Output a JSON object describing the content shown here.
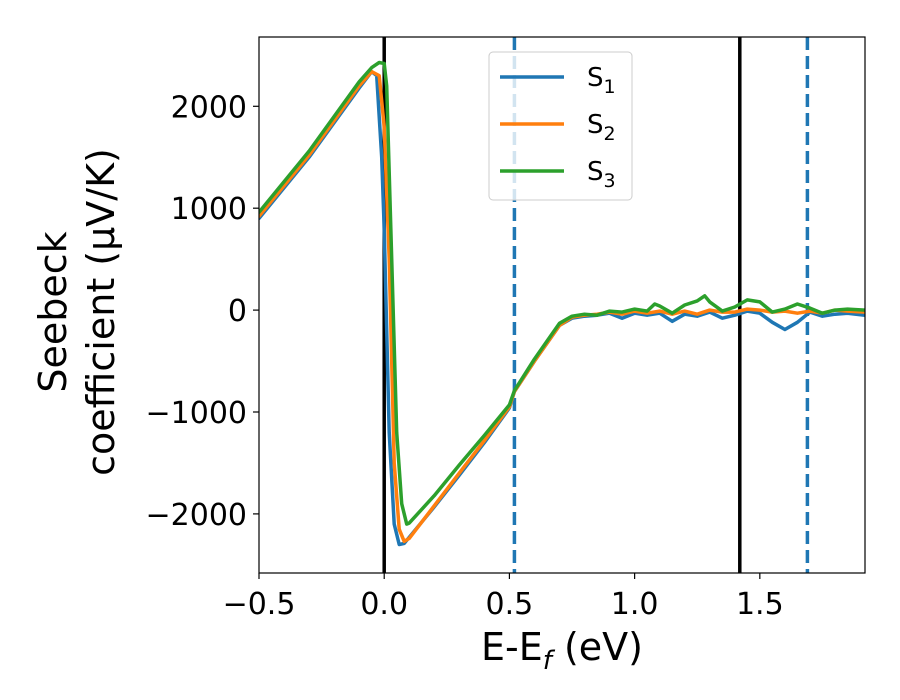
{
  "chart_data": {
    "type": "line",
    "title": "",
    "xlabel": "E-E",
    "xlabel_sub": "f",
    "xlabel_unit": " (eV)",
    "ylabel_line1": "Seebeck",
    "ylabel_line2": "coefficient  (μV/K)",
    "xlim": [
      -0.5,
      1.92
    ],
    "ylim": [
      -2580,
      2680
    ],
    "xticks": [
      -0.5,
      0.0,
      0.5,
      1.0,
      1.5
    ],
    "xtick_labels": [
      "−0.5",
      "0.0",
      "0.5",
      "1.0",
      "1.5"
    ],
    "yticks": [
      -2000,
      -1000,
      0,
      1000,
      2000
    ],
    "ytick_labels": [
      "−2000",
      "−1000",
      "0",
      "1000",
      "2000"
    ],
    "grid": false,
    "legend_position": "top-center",
    "vertical_lines": [
      {
        "x": 0.0,
        "style": "solid",
        "color": "#000000"
      },
      {
        "x": 1.42,
        "style": "solid",
        "color": "#000000"
      },
      {
        "x": 0.52,
        "style": "dashed",
        "color": "#1f77b4"
      },
      {
        "x": 1.69,
        "style": "dashed",
        "color": "#1f77b4"
      }
    ],
    "series": [
      {
        "name": "S",
        "name_sub": "1",
        "color": "#1f77b4",
        "points": [
          [
            -0.5,
            900
          ],
          [
            -0.3,
            1500
          ],
          [
            -0.1,
            2180
          ],
          [
            -0.05,
            2340
          ],
          [
            -0.03,
            2300
          ],
          [
            -0.01,
            1500
          ],
          [
            0.0,
            800
          ],
          [
            0.02,
            -1200
          ],
          [
            0.04,
            -2100
          ],
          [
            0.06,
            -2300
          ],
          [
            0.08,
            -2290
          ],
          [
            0.1,
            -2230
          ],
          [
            0.2,
            -1930
          ],
          [
            0.3,
            -1620
          ],
          [
            0.4,
            -1300
          ],
          [
            0.5,
            -960
          ],
          [
            0.52,
            -800
          ],
          [
            0.6,
            -500
          ],
          [
            0.7,
            -150
          ],
          [
            0.75,
            -80
          ],
          [
            0.8,
            -60
          ],
          [
            0.85,
            -50
          ],
          [
            0.9,
            -30
          ],
          [
            0.95,
            -80
          ],
          [
            1.0,
            -30
          ],
          [
            1.05,
            -50
          ],
          [
            1.1,
            -30
          ],
          [
            1.15,
            -110
          ],
          [
            1.2,
            -40
          ],
          [
            1.25,
            -60
          ],
          [
            1.3,
            -20
          ],
          [
            1.35,
            -80
          ],
          [
            1.4,
            -50
          ],
          [
            1.45,
            -10
          ],
          [
            1.5,
            -30
          ],
          [
            1.55,
            -120
          ],
          [
            1.6,
            -190
          ],
          [
            1.65,
            -120
          ],
          [
            1.7,
            -20
          ],
          [
            1.75,
            -60
          ],
          [
            1.8,
            -40
          ],
          [
            1.85,
            -30
          ],
          [
            1.92,
            -50
          ]
        ]
      },
      {
        "name": "S",
        "name_sub": "2",
        "color": "#ff7f0e",
        "points": [
          [
            -0.5,
            920
          ],
          [
            -0.3,
            1520
          ],
          [
            -0.1,
            2200
          ],
          [
            -0.05,
            2340
          ],
          [
            -0.02,
            2300
          ],
          [
            0.0,
            1800
          ],
          [
            0.02,
            500
          ],
          [
            0.04,
            -1500
          ],
          [
            0.06,
            -2150
          ],
          [
            0.08,
            -2270
          ],
          [
            0.1,
            -2240
          ],
          [
            0.2,
            -1920
          ],
          [
            0.3,
            -1600
          ],
          [
            0.4,
            -1280
          ],
          [
            0.5,
            -950
          ],
          [
            0.52,
            -800
          ],
          [
            0.6,
            -500
          ],
          [
            0.7,
            -150
          ],
          [
            0.75,
            -70
          ],
          [
            0.8,
            -50
          ],
          [
            0.85,
            -40
          ],
          [
            0.9,
            -20
          ],
          [
            0.95,
            -40
          ],
          [
            1.0,
            -10
          ],
          [
            1.05,
            -30
          ],
          [
            1.1,
            -10
          ],
          [
            1.15,
            -40
          ],
          [
            1.2,
            -10
          ],
          [
            1.25,
            -40
          ],
          [
            1.3,
            0
          ],
          [
            1.35,
            -20
          ],
          [
            1.4,
            -20
          ],
          [
            1.45,
            10
          ],
          [
            1.5,
            0
          ],
          [
            1.55,
            -20
          ],
          [
            1.6,
            -10
          ],
          [
            1.65,
            -30
          ],
          [
            1.7,
            -10
          ],
          [
            1.75,
            -30
          ],
          [
            1.8,
            0
          ],
          [
            1.85,
            -10
          ],
          [
            1.92,
            -20
          ]
        ]
      },
      {
        "name": "S",
        "name_sub": "3",
        "color": "#2ca02c",
        "points": [
          [
            -0.5,
            960
          ],
          [
            -0.3,
            1560
          ],
          [
            -0.1,
            2240
          ],
          [
            -0.05,
            2380
          ],
          [
            -0.02,
            2430
          ],
          [
            0.0,
            2420
          ],
          [
            0.01,
            2200
          ],
          [
            0.03,
            500
          ],
          [
            0.05,
            -1200
          ],
          [
            0.07,
            -1900
          ],
          [
            0.09,
            -2100
          ],
          [
            0.1,
            -2090
          ],
          [
            0.2,
            -1820
          ],
          [
            0.3,
            -1520
          ],
          [
            0.4,
            -1230
          ],
          [
            0.5,
            -930
          ],
          [
            0.52,
            -790
          ],
          [
            0.6,
            -480
          ],
          [
            0.7,
            -130
          ],
          [
            0.75,
            -60
          ],
          [
            0.8,
            -40
          ],
          [
            0.85,
            -50
          ],
          [
            0.9,
            -10
          ],
          [
            0.95,
            -20
          ],
          [
            1.0,
            10
          ],
          [
            1.05,
            -10
          ],
          [
            1.08,
            60
          ],
          [
            1.1,
            40
          ],
          [
            1.15,
            -30
          ],
          [
            1.2,
            50
          ],
          [
            1.25,
            90
          ],
          [
            1.28,
            140
          ],
          [
            1.3,
            80
          ],
          [
            1.35,
            -10
          ],
          [
            1.4,
            30
          ],
          [
            1.45,
            100
          ],
          [
            1.5,
            80
          ],
          [
            1.55,
            -20
          ],
          [
            1.6,
            10
          ],
          [
            1.65,
            60
          ],
          [
            1.7,
            20
          ],
          [
            1.75,
            -30
          ],
          [
            1.8,
            0
          ],
          [
            1.85,
            10
          ],
          [
            1.92,
            0
          ]
        ]
      }
    ]
  }
}
